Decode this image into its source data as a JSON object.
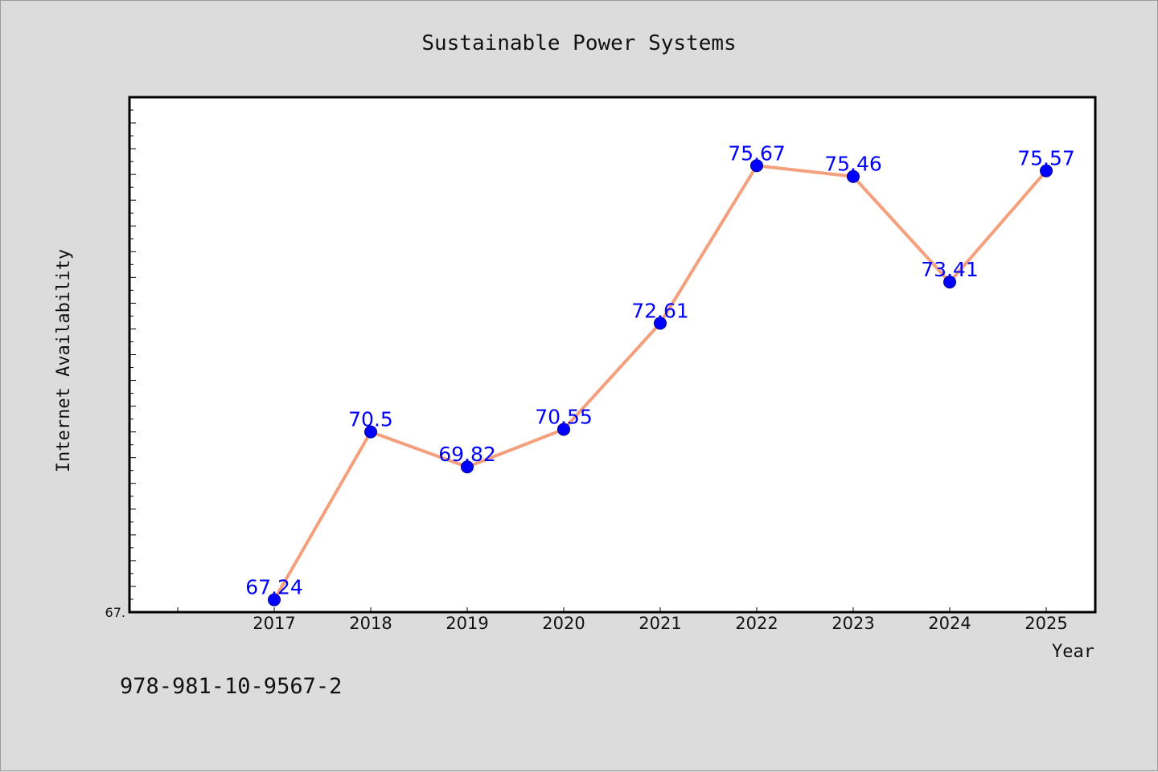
{
  "chart_data": {
    "type": "line",
    "title": "Sustainable Power Systems",
    "xlabel": "Year",
    "ylabel": "Internet Availability",
    "categories": [
      "2017",
      "2018",
      "2019",
      "2020",
      "2021",
      "2022",
      "2023",
      "2024",
      "2025"
    ],
    "series": [
      {
        "values": [
          67.24,
          70.5,
          69.82,
          70.55,
          72.61,
          75.67,
          75.46,
          73.41,
          75.57
        ],
        "labels": [
          "67.24",
          "70.5",
          "69.82",
          "70.55",
          "72.61",
          "75.67",
          "75.46",
          "73.41",
          "75.57"
        ]
      }
    ],
    "ylim": [
      67.0,
      77.0
    ],
    "y_tick_labels": [
      "67."
    ],
    "grid": false,
    "legend": false,
    "colors": {
      "line": "#f4a07c",
      "marker": "#0000ff",
      "label": "#0000ff",
      "background": "#dcdcdc",
      "plot_bg": "#ffffff"
    }
  },
  "footer": {
    "isbn": "978-981-10-9567-2"
  }
}
